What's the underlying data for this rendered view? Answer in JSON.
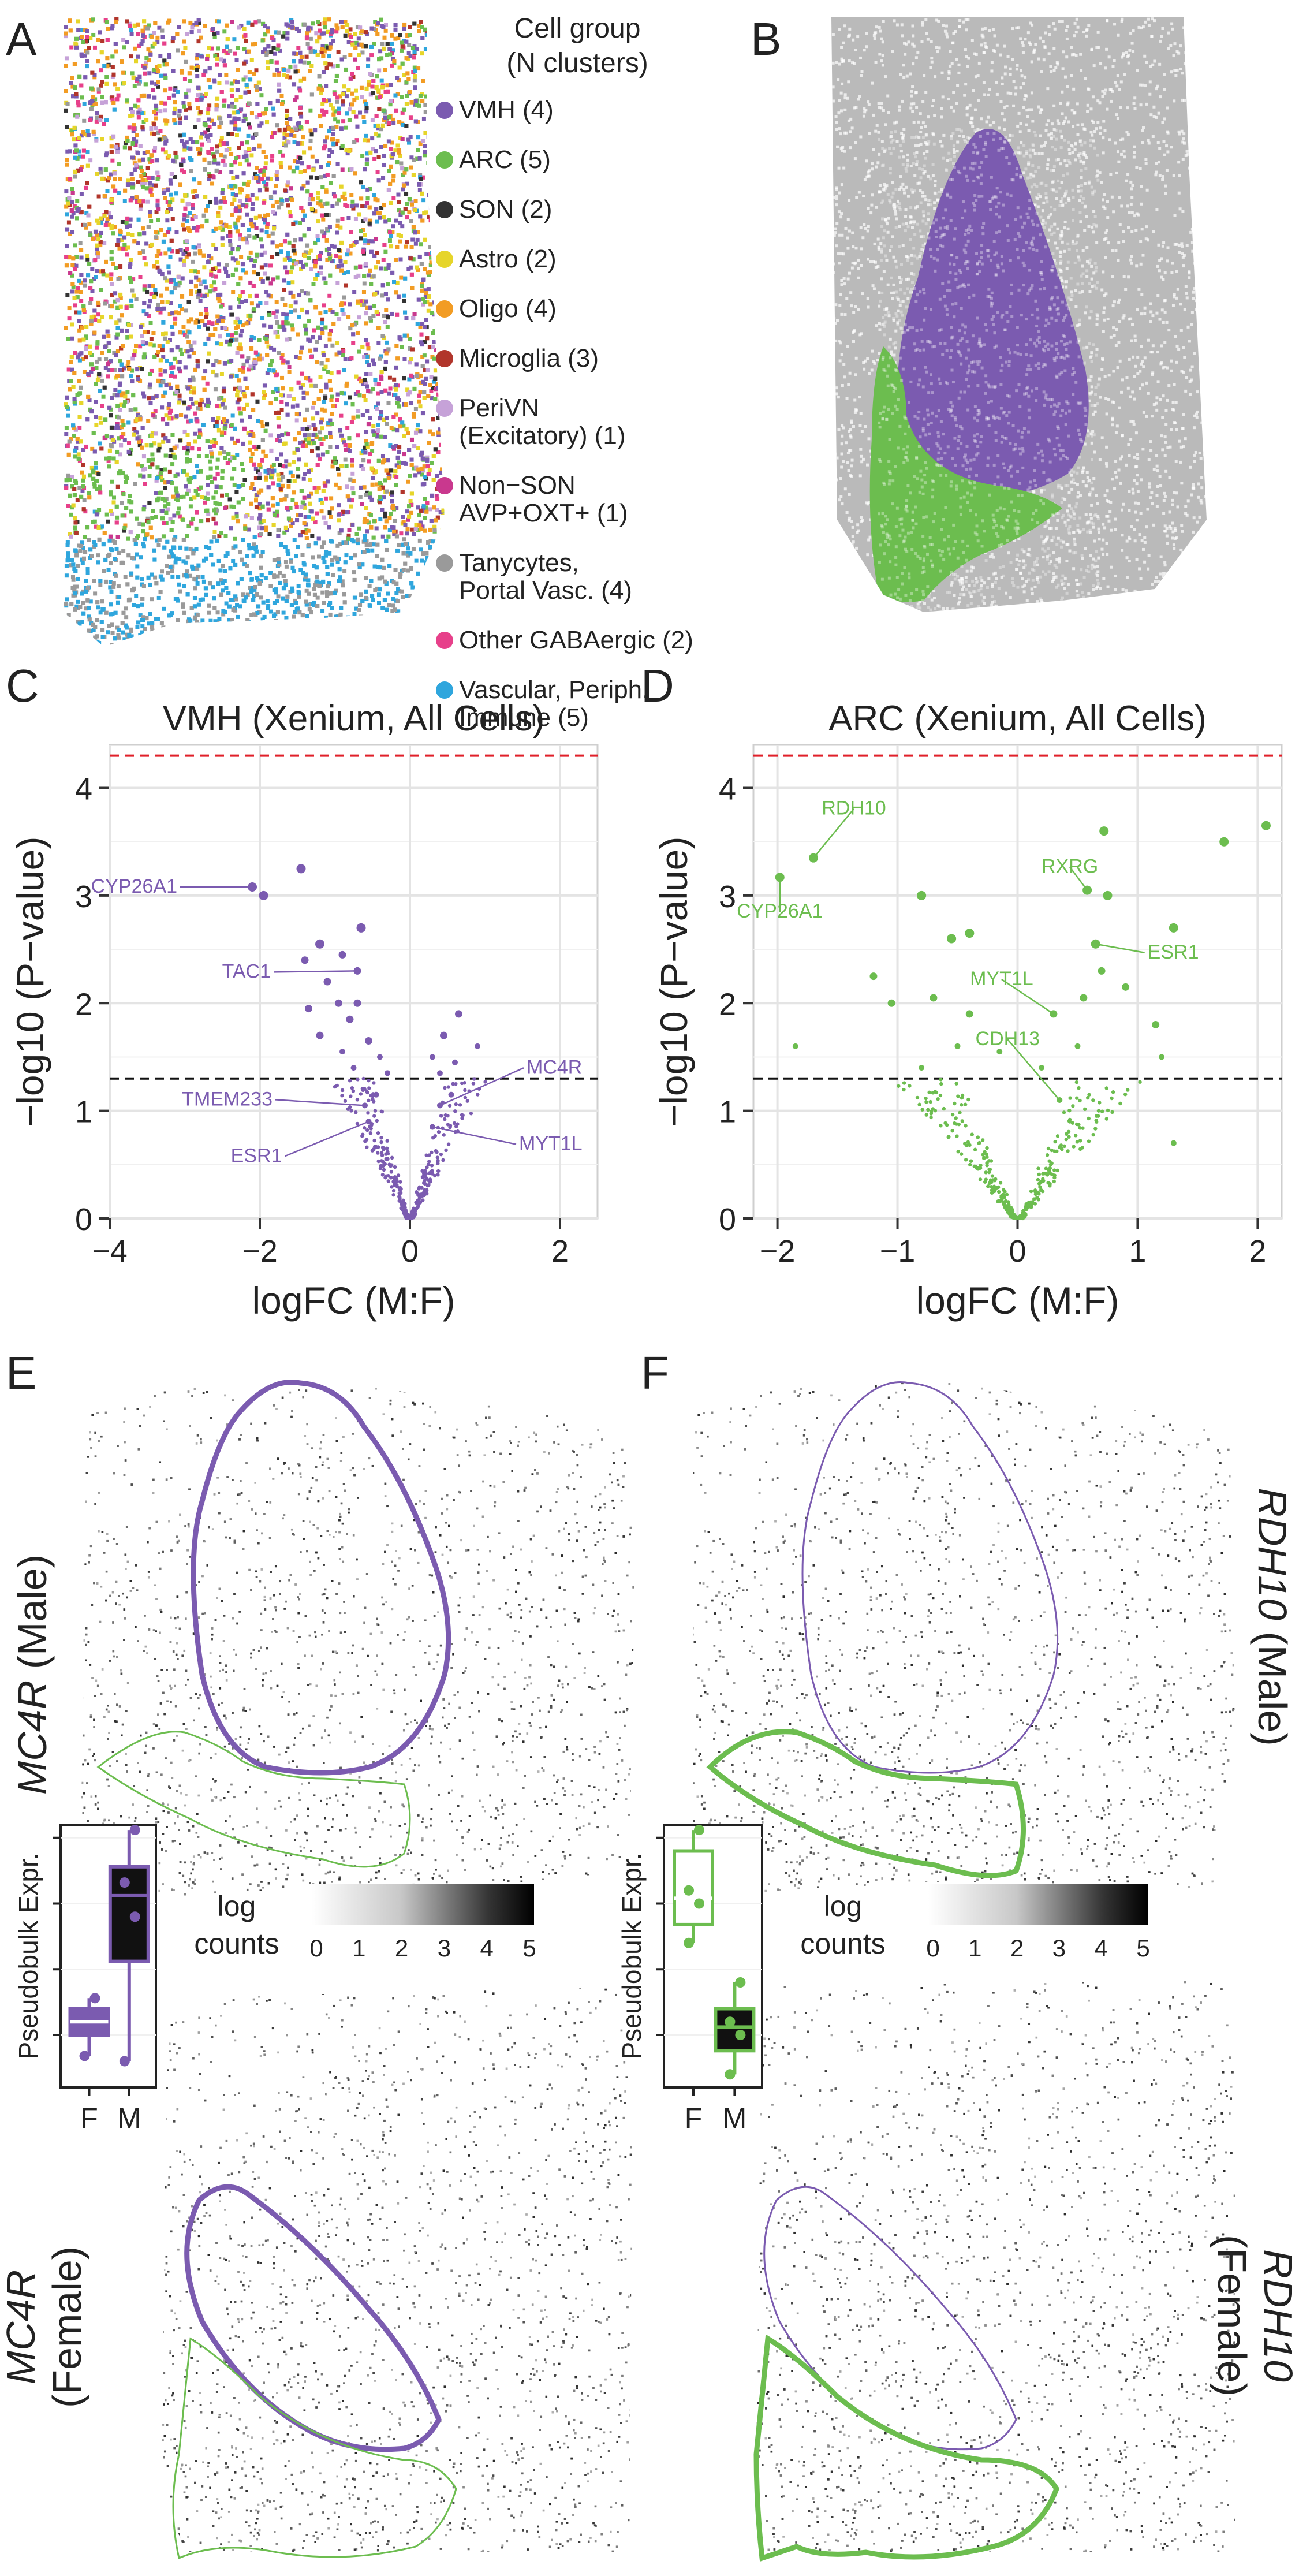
{
  "colors": {
    "vmh": "#7b5bb0",
    "arc": "#6cbd4f",
    "grey_cells": "#b3b3b3",
    "red_line": "#e0202a",
    "black_line": "#111111"
  },
  "panel_letters": [
    "A",
    "B",
    "C",
    "D",
    "E",
    "F"
  ],
  "legend": {
    "title_line1": "Cell group",
    "title_line2": "(N clusters)",
    "items": [
      {
        "label": "VMH (4)",
        "color": "#7b5bb0"
      },
      {
        "label": "ARC (5)",
        "color": "#6cbd4f"
      },
      {
        "label": "SON (2)",
        "color": "#333333"
      },
      {
        "label": "Astro (2)",
        "color": "#e6d52a"
      },
      {
        "label": "Oligo (4)",
        "color": "#f29c24"
      },
      {
        "label": "Microglia (3)",
        "color": "#b1352b"
      },
      {
        "label": "PeriVN",
        "label2": "(Excitatory) (1)",
        "color": "#c6a2d8"
      },
      {
        "label": "Non−SON",
        "label2": "AVP+OXT+ (1)",
        "color": "#c9388e"
      },
      {
        "label": "Tanycytes,",
        "label2": "Portal Vasc. (4)",
        "color": "#9a9a9a"
      },
      {
        "label": "Other GABAergic (2)",
        "color": "#e7408a"
      },
      {
        "label": "Vascular, Periph.",
        "label2": "Immune (5)",
        "color": "#2fa6dd"
      }
    ]
  },
  "chart_data": [
    {
      "type": "scatter",
      "panel": "C",
      "title": "VMH (Xenium, All Cells)",
      "xlabel": "logFC (M:F)",
      "ylabel": "−log10 (P−value)",
      "xlim": [
        -4,
        2.5
      ],
      "ylim": [
        0,
        4.4
      ],
      "xticks": [
        "−4",
        "−2",
        "0",
        "2"
      ],
      "yticks": [
        "0",
        "1",
        "2",
        "3",
        "4"
      ],
      "grid": true,
      "significance_line": 4.3,
      "nominal_line": 1.3,
      "point_color": "#7b5bb0",
      "labeled_points": [
        {
          "label": "CYP26A1",
          "x": -2.1,
          "y": 3.08
        },
        {
          "label": "TAC1",
          "x": -0.7,
          "y": 2.3
        },
        {
          "label": "TMEM233",
          "x": -0.6,
          "y": 1.05
        },
        {
          "label": "ESR1",
          "x": -0.55,
          "y": 0.9
        },
        {
          "label": "MC4R",
          "x": 0.4,
          "y": 1.05
        },
        {
          "label": "MYT1L",
          "x": 0.3,
          "y": 0.85
        }
      ],
      "points": [
        {
          "x": -1.45,
          "y": 3.25
        },
        {
          "x": -2.1,
          "y": 3.08
        },
        {
          "x": -1.95,
          "y": 3.0
        },
        {
          "x": -0.65,
          "y": 2.7
        },
        {
          "x": -1.2,
          "y": 2.55
        },
        {
          "x": -0.9,
          "y": 2.45
        },
        {
          "x": -1.4,
          "y": 2.4
        },
        {
          "x": -0.7,
          "y": 2.3
        },
        {
          "x": -1.1,
          "y": 2.2
        },
        {
          "x": -0.95,
          "y": 2.0
        },
        {
          "x": -0.7,
          "y": 2.0
        },
        {
          "x": -1.35,
          "y": 1.95
        },
        {
          "x": -0.8,
          "y": 1.85
        },
        {
          "x": 0.65,
          "y": 1.9
        },
        {
          "x": -1.2,
          "y": 1.7
        },
        {
          "x": -0.55,
          "y": 1.65
        },
        {
          "x": 0.45,
          "y": 1.7
        },
        {
          "x": 0.9,
          "y": 1.6
        },
        {
          "x": -0.9,
          "y": 1.55
        },
        {
          "x": -0.4,
          "y": 1.5
        },
        {
          "x": 0.3,
          "y": 1.5
        },
        {
          "x": 0.6,
          "y": 1.45
        },
        {
          "x": -0.75,
          "y": 1.4
        },
        {
          "x": -0.3,
          "y": 1.35
        },
        {
          "x": 0.4,
          "y": 1.35
        },
        {
          "x": -0.6,
          "y": 1.05
        },
        {
          "x": 0.4,
          "y": 1.05
        },
        {
          "x": -0.55,
          "y": 0.9
        },
        {
          "x": 0.3,
          "y": 0.85
        },
        {
          "x": -0.45,
          "y": 1.15
        },
        {
          "x": 0.55,
          "y": 1.15
        }
      ],
      "cloud": true
    },
    {
      "type": "scatter",
      "panel": "D",
      "title": "ARC (Xenium, All Cells)",
      "xlabel": "logFC (M:F)",
      "ylabel": "−log10 (P−value)",
      "xlim": [
        -2.2,
        2.2
      ],
      "ylim": [
        0,
        4.4
      ],
      "xticks": [
        "−2",
        "−1",
        "0",
        "1",
        "2"
      ],
      "yticks": [
        "0",
        "1",
        "2",
        "3",
        "4"
      ],
      "grid": true,
      "significance_line": 4.3,
      "nominal_line": 1.3,
      "point_color": "#6cbd4f",
      "labeled_points": [
        {
          "label": "RDH10",
          "x": -1.7,
          "y": 3.35
        },
        {
          "label": "CYP26A1",
          "x": -1.98,
          "y": 3.17
        },
        {
          "label": "RXRG",
          "x": 0.58,
          "y": 3.05
        },
        {
          "label": "ESR1",
          "x": 0.65,
          "y": 2.55
        },
        {
          "label": "MYT1L",
          "x": 0.3,
          "y": 1.9
        },
        {
          "label": "CDH13",
          "x": 0.35,
          "y": 1.1
        }
      ],
      "points": [
        {
          "x": 2.07,
          "y": 3.65
        },
        {
          "x": 1.72,
          "y": 3.5
        },
        {
          "x": 0.72,
          "y": 3.6
        },
        {
          "x": -1.7,
          "y": 3.35
        },
        {
          "x": -1.98,
          "y": 3.17
        },
        {
          "x": 0.58,
          "y": 3.05
        },
        {
          "x": -0.8,
          "y": 3.0
        },
        {
          "x": 0.75,
          "y": 3.0
        },
        {
          "x": 1.3,
          "y": 2.7
        },
        {
          "x": -0.4,
          "y": 2.65
        },
        {
          "x": -0.55,
          "y": 2.6
        },
        {
          "x": 0.65,
          "y": 2.55
        },
        {
          "x": -1.2,
          "y": 2.25
        },
        {
          "x": 0.7,
          "y": 2.3
        },
        {
          "x": 0.9,
          "y": 2.15
        },
        {
          "x": 0.55,
          "y": 2.05
        },
        {
          "x": -0.7,
          "y": 2.05
        },
        {
          "x": -1.05,
          "y": 2.0
        },
        {
          "x": 1.15,
          "y": 1.8
        },
        {
          "x": 0.3,
          "y": 1.9
        },
        {
          "x": -0.4,
          "y": 1.9
        },
        {
          "x": -0.5,
          "y": 1.6
        },
        {
          "x": -0.15,
          "y": 1.55
        },
        {
          "x": 0.5,
          "y": 1.6
        },
        {
          "x": -1.85,
          "y": 1.6
        },
        {
          "x": 1.2,
          "y": 1.5
        },
        {
          "x": -0.8,
          "y": 1.4
        },
        {
          "x": 0.2,
          "y": 1.4
        },
        {
          "x": 0.35,
          "y": 1.1
        },
        {
          "x": 1.3,
          "y": 0.7
        }
      ],
      "cloud": true
    },
    {
      "type": "box",
      "panel": "E",
      "ylabel": "Pseudobulk Expr.",
      "categories": [
        "F",
        "M"
      ],
      "series": [
        {
          "name": "F",
          "median": 0.25,
          "q1": 0.2,
          "q3": 0.3,
          "min": 0.12,
          "max": 0.34,
          "points": [
            0.12,
            0.22,
            0.28,
            0.34
          ],
          "fill": "#7b5bb0"
        },
        {
          "name": "M",
          "median": 0.73,
          "q1": 0.48,
          "q3": 0.84,
          "min": 0.1,
          "max": 0.98,
          "points": [
            0.1,
            0.65,
            0.78,
            0.98
          ],
          "fill": "#111111",
          "border": "#7b5bb0"
        }
      ]
    },
    {
      "type": "box",
      "panel": "F",
      "ylabel": "Pseudobulk Expr.",
      "categories": [
        "F",
        "M"
      ],
      "series": [
        {
          "name": "F",
          "median": 0.72,
          "q1": 0.62,
          "q3": 0.9,
          "min": 0.55,
          "max": 0.98,
          "points": [
            0.55,
            0.7,
            0.75,
            0.98
          ],
          "fill": "#ffffff",
          "border": "#6cbd4f"
        },
        {
          "name": "M",
          "median": 0.23,
          "q1": 0.14,
          "q3": 0.3,
          "min": 0.05,
          "max": 0.4,
          "points": [
            0.05,
            0.2,
            0.25,
            0.4
          ],
          "fill": "#111111",
          "border": "#6cbd4f"
        }
      ]
    }
  ],
  "colorbar": {
    "label_line1": "log",
    "label_line2": "counts",
    "ticks": [
      "0",
      "1",
      "2",
      "3",
      "4",
      "5"
    ]
  },
  "panel_E": {
    "label_top_gene": "MC4R",
    "label_top_sex": "(Male)",
    "label_bottom_gene": "MC4R",
    "label_bottom_sex": "(Female)"
  },
  "panel_F": {
    "label_top_gene": "RDH10",
    "label_top_sex": "(Male)",
    "label_bottom_gene": "RDH10",
    "label_bottom_sex": "(Female)"
  }
}
